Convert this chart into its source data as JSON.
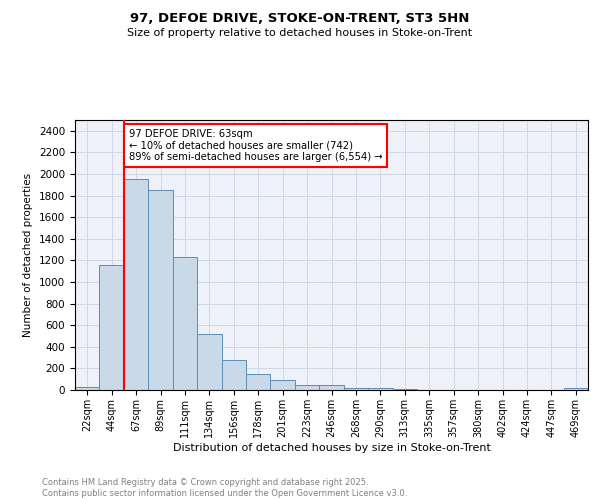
{
  "title1": "97, DEFOE DRIVE, STOKE-ON-TRENT, ST3 5HN",
  "title2": "Size of property relative to detached houses in Stoke-on-Trent",
  "xlabel": "Distribution of detached houses by size in Stoke-on-Trent",
  "ylabel": "Number of detached properties",
  "bin_labels": [
    "22sqm",
    "44sqm",
    "67sqm",
    "89sqm",
    "111sqm",
    "134sqm",
    "156sqm",
    "178sqm",
    "201sqm",
    "223sqm",
    "246sqm",
    "268sqm",
    "290sqm",
    "313sqm",
    "335sqm",
    "357sqm",
    "380sqm",
    "402sqm",
    "424sqm",
    "447sqm",
    "469sqm"
  ],
  "bar_values": [
    25,
    1160,
    1950,
    1850,
    1230,
    520,
    275,
    150,
    90,
    45,
    45,
    20,
    15,
    5,
    3,
    2,
    2,
    2,
    1,
    1,
    15
  ],
  "bar_color": "#c9d9e8",
  "bar_edge_color": "#5b8db8",
  "annotation_text": "97 DEFOE DRIVE: 63sqm\n← 10% of detached houses are smaller (742)\n89% of semi-detached houses are larger (6,554) →",
  "annotation_box_color": "white",
  "annotation_box_edge_color": "red",
  "red_line_color": "red",
  "grid_color": "#d0d8e8",
  "background_color": "#eef2f8",
  "footer_text": "Contains HM Land Registry data © Crown copyright and database right 2025.\nContains public sector information licensed under the Open Government Licence v3.0.",
  "ylim": [
    0,
    2500
  ],
  "yticks": [
    0,
    200,
    400,
    600,
    800,
    1000,
    1200,
    1400,
    1600,
    1800,
    2000,
    2200,
    2400
  ]
}
